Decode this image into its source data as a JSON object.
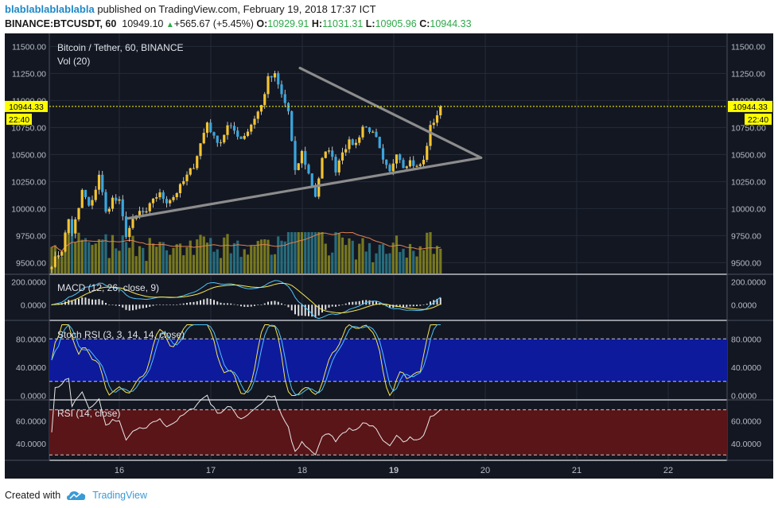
{
  "header": {
    "author": "blablablablablabla",
    "published_text": "published on TradingView.com, February 19, 2018 17:37 ICT",
    "symbol": "BINANCE:BTCUSDT, 60",
    "last_price": "10949.10",
    "change": "+565.67 (+5.45%)",
    "o_label": "O:",
    "o_value": "10929.91",
    "h_label": "H:",
    "h_value": "11031.31",
    "l_label": "L:",
    "l_value": "10905.96",
    "c_label": "C:",
    "c_value": "10944.33"
  },
  "footer": {
    "created_with": "Created with",
    "brand": "TradingView",
    "logo_icon": "tradingview-cloud-icon"
  },
  "colors": {
    "background": "#131722",
    "up_candle": "#f4c430",
    "down_candle": "#3aa6dd",
    "price_line": "#ffff00",
    "triangle": "#8c8c8c",
    "volume_up": "#8a8a20",
    "volume_down": "#2d7a8c",
    "macd": "#4fc3f7",
    "signal": "#f7e64f",
    "rsi_band": "#5a1518",
    "stoch_band": "#0d1a9c"
  },
  "chart_data": [
    {
      "type": "candlestick",
      "title": "Bitcoin / Tether, 60, BINANCE",
      "volume_label": "Vol (20)",
      "y_ticks": [
        "11500.00",
        "11250.00",
        "11000.00",
        "10750.00",
        "10500.00",
        "10250.00",
        "10000.00",
        "9750.00",
        "9500.00"
      ],
      "ylim": [
        9400,
        11620
      ],
      "x_ticks": [
        "16",
        "17",
        "18",
        "19",
        "20",
        "21",
        "22"
      ],
      "price_label": "10944.33",
      "time_label": "22:40",
      "current_price": 10944.33,
      "triangle": {
        "upper": [
          [
            8.3,
            11300
          ],
          [
            13.3,
            10470
          ]
        ],
        "lower": [
          [
            4.1,
            9910
          ],
          [
            13.3,
            10470
          ]
        ]
      },
      "anchors": [
        [
          0,
          9490
        ],
        [
          3,
          9620
        ],
        [
          5,
          9900
        ],
        [
          6,
          9780
        ],
        [
          8,
          9990
        ],
        [
          9,
          10170
        ],
        [
          11,
          10020
        ],
        [
          12,
          10060
        ],
        [
          14,
          10320
        ],
        [
          16,
          9960
        ],
        [
          18,
          10090
        ],
        [
          20,
          10060
        ],
        [
          22,
          9760
        ],
        [
          24,
          9880
        ],
        [
          26,
          9970
        ],
        [
          28,
          9950
        ],
        [
          30,
          10100
        ],
        [
          32,
          10130
        ],
        [
          34,
          10070
        ],
        [
          36,
          10110
        ],
        [
          38,
          10200
        ],
        [
          40,
          10300
        ],
        [
          42,
          10400
        ],
        [
          44,
          10600
        ],
        [
          46,
          10800
        ],
        [
          48,
          10650
        ],
        [
          50,
          10620
        ],
        [
          52,
          10760
        ],
        [
          54,
          10720
        ],
        [
          56,
          10650
        ],
        [
          58,
          10720
        ],
        [
          60,
          10840
        ],
        [
          62,
          10950
        ],
        [
          64,
          11200
        ],
        [
          66,
          11230
        ],
        [
          68,
          11050
        ],
        [
          70,
          10900
        ],
        [
          72,
          10330
        ],
        [
          74,
          10520
        ],
        [
          76,
          10320
        ],
        [
          78,
          10120
        ],
        [
          80,
          10450
        ],
        [
          82,
          10560
        ],
        [
          84,
          10360
        ],
        [
          86,
          10540
        ],
        [
          88,
          10610
        ],
        [
          90,
          10600
        ],
        [
          92,
          10760
        ],
        [
          94,
          10730
        ],
        [
          96,
          10640
        ],
        [
          98,
          10430
        ],
        [
          100,
          10330
        ],
        [
          102,
          10530
        ],
        [
          104,
          10400
        ],
        [
          106,
          10440
        ],
        [
          108,
          10380
        ],
        [
          110,
          10440
        ],
        [
          112,
          10750
        ],
        [
          114,
          10870
        ],
        [
          115,
          10944
        ]
      ]
    },
    {
      "type": "line",
      "title": "MACD (12, 26, close, 9)",
      "y_ticks": [
        "200.0000",
        "0.0000"
      ],
      "ylim": [
        -130,
        260
      ]
    },
    {
      "type": "line",
      "title": "Stoch RSI (3, 3, 14, 14, close)",
      "y_ticks": [
        "80.0000",
        "40.0000",
        "0.0000"
      ],
      "ylim": [
        -5,
        105
      ],
      "band": [
        20,
        80
      ]
    },
    {
      "type": "line",
      "title": "RSI (14, close)",
      "y_ticks": [
        "60.0000",
        "40.0000"
      ],
      "ylim": [
        26,
        78
      ],
      "band": [
        30,
        70
      ]
    }
  ]
}
